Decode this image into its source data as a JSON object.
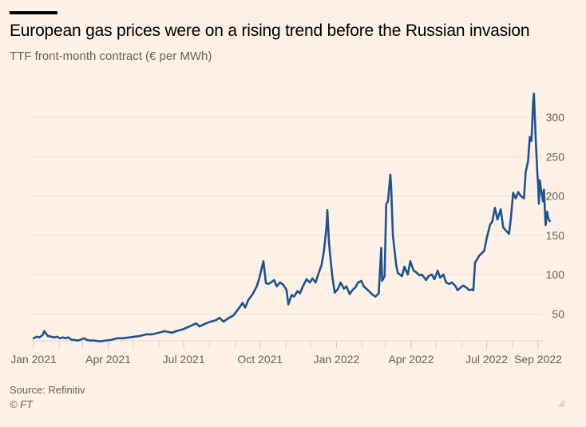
{
  "header": {
    "title": "European gas prices were on a rising trend before the Russian invasion",
    "subtitle": "TTF front-month contract (€ per MWh)"
  },
  "footer": {
    "source": "Source: Refinitiv",
    "copyright": "© FT"
  },
  "colors": {
    "background": "#fff1e5",
    "line": "#1a5494",
    "gridline": "#f2dfce",
    "text_muted": "#66605c"
  },
  "chart_data": {
    "type": "line",
    "title": "European gas prices were on a rising trend before the Russian invasion",
    "subtitle": "TTF front-month contract (€ per MWh)",
    "xlabel": "",
    "ylabel": "€ per MWh",
    "x_range": [
      "2021-01-01",
      "2022-09-05"
    ],
    "ylim": [
      16,
      335
    ],
    "y_ticks": [
      50,
      100,
      150,
      200,
      250,
      300
    ],
    "y_tick_labels": [
      "50",
      "100",
      "150",
      "200",
      "250",
      "300"
    ],
    "y_axis_side": "right",
    "x_ticks": [
      "2021-01-01",
      "2021-04-01",
      "2021-07-01",
      "2021-10-01",
      "2022-01-01",
      "2022-04-01",
      "2022-07-01",
      "2022-09-01"
    ],
    "x_tick_labels": [
      "Jan 2021",
      "Apr 2021",
      "Jul 2021",
      "Oct 2021",
      "Jan 2022",
      "Apr 2022",
      "Jul 2022",
      "Sep 2022"
    ],
    "x_minor_ticks_monthly": true,
    "grid": true,
    "legend": "none",
    "series": [
      {
        "name": "TTF front-month",
        "points": [
          [
            "2021-01-01",
            19
          ],
          [
            "2021-01-05",
            21
          ],
          [
            "2021-01-08",
            20
          ],
          [
            "2021-01-12",
            23
          ],
          [
            "2021-01-14",
            28
          ],
          [
            "2021-01-18",
            22
          ],
          [
            "2021-01-22",
            21
          ],
          [
            "2021-01-26",
            20
          ],
          [
            "2021-01-29",
            21
          ],
          [
            "2021-02-02",
            19
          ],
          [
            "2021-02-05",
            20
          ],
          [
            "2021-02-09",
            19
          ],
          [
            "2021-02-12",
            20
          ],
          [
            "2021-02-16",
            17
          ],
          [
            "2021-02-19",
            17
          ],
          [
            "2021-02-23",
            16
          ],
          [
            "2021-02-26",
            17
          ],
          [
            "2021-03-03",
            19
          ],
          [
            "2021-03-06",
            17
          ],
          [
            "2021-03-10",
            16
          ],
          [
            "2021-03-15",
            16
          ],
          [
            "2021-03-22",
            15
          ],
          [
            "2021-03-29",
            16
          ],
          [
            "2021-04-05",
            17
          ],
          [
            "2021-04-12",
            19
          ],
          [
            "2021-04-19",
            19
          ],
          [
            "2021-04-26",
            20
          ],
          [
            "2021-05-03",
            21
          ],
          [
            "2021-05-10",
            22
          ],
          [
            "2021-05-17",
            24
          ],
          [
            "2021-05-24",
            24
          ],
          [
            "2021-06-01",
            26
          ],
          [
            "2021-06-08",
            28
          ],
          [
            "2021-06-12",
            27
          ],
          [
            "2021-06-17",
            26
          ],
          [
            "2021-06-22",
            28
          ],
          [
            "2021-06-29",
            30
          ],
          [
            "2021-07-06",
            33
          ],
          [
            "2021-07-12",
            36
          ],
          [
            "2021-07-16",
            38
          ],
          [
            "2021-07-20",
            34
          ],
          [
            "2021-07-26",
            37
          ],
          [
            "2021-08-02",
            40
          ],
          [
            "2021-08-09",
            42
          ],
          [
            "2021-08-13",
            45
          ],
          [
            "2021-08-18",
            40
          ],
          [
            "2021-08-23",
            44
          ],
          [
            "2021-08-30",
            48
          ],
          [
            "2021-09-06",
            58
          ],
          [
            "2021-09-10",
            64
          ],
          [
            "2021-09-13",
            58
          ],
          [
            "2021-09-17",
            68
          ],
          [
            "2021-09-22",
            75
          ],
          [
            "2021-09-27",
            85
          ],
          [
            "2021-09-30",
            95
          ],
          [
            "2021-10-05",
            117
          ],
          [
            "2021-10-08",
            89
          ],
          [
            "2021-10-11",
            88
          ],
          [
            "2021-10-14",
            90
          ],
          [
            "2021-10-18",
            93
          ],
          [
            "2021-10-21",
            85
          ],
          [
            "2021-10-25",
            90
          ],
          [
            "2021-10-29",
            87
          ],
          [
            "2021-11-02",
            80
          ],
          [
            "2021-11-04",
            62
          ],
          [
            "2021-11-08",
            74
          ],
          [
            "2021-11-11",
            72
          ],
          [
            "2021-11-15",
            79
          ],
          [
            "2021-11-18",
            76
          ],
          [
            "2021-11-22",
            86
          ],
          [
            "2021-11-26",
            94
          ],
          [
            "2021-11-30",
            90
          ],
          [
            "2021-12-03",
            95
          ],
          [
            "2021-12-07",
            90
          ],
          [
            "2021-12-10",
            100
          ],
          [
            "2021-12-14",
            112
          ],
          [
            "2021-12-17",
            130
          ],
          [
            "2021-12-20",
            160
          ],
          [
            "2021-12-21",
            182
          ],
          [
            "2021-12-23",
            140
          ],
          [
            "2021-12-27",
            98
          ],
          [
            "2021-12-30",
            77
          ],
          [
            "2022-01-03",
            82
          ],
          [
            "2022-01-06",
            90
          ],
          [
            "2022-01-10",
            82
          ],
          [
            "2022-01-13",
            85
          ],
          [
            "2022-01-17",
            75
          ],
          [
            "2022-01-20",
            80
          ],
          [
            "2022-01-24",
            84
          ],
          [
            "2022-01-27",
            90
          ],
          [
            "2022-01-31",
            92
          ],
          [
            "2022-02-03",
            85
          ],
          [
            "2022-02-07",
            81
          ],
          [
            "2022-02-10",
            78
          ],
          [
            "2022-02-14",
            74
          ],
          [
            "2022-02-17",
            72
          ],
          [
            "2022-02-21",
            76
          ],
          [
            "2022-02-24",
            134
          ],
          [
            "2022-02-25",
            92
          ],
          [
            "2022-02-28",
            98
          ],
          [
            "2022-03-02",
            190
          ],
          [
            "2022-03-04",
            193
          ],
          [
            "2022-03-07",
            227
          ],
          [
            "2022-03-08",
            210
          ],
          [
            "2022-03-10",
            150
          ],
          [
            "2022-03-14",
            112
          ],
          [
            "2022-03-16",
            102
          ],
          [
            "2022-03-21",
            98
          ],
          [
            "2022-03-24",
            110
          ],
          [
            "2022-03-28",
            100
          ],
          [
            "2022-03-31",
            117
          ],
          [
            "2022-04-04",
            105
          ],
          [
            "2022-04-07",
            103
          ],
          [
            "2022-04-11",
            99
          ],
          [
            "2022-04-14",
            100
          ],
          [
            "2022-04-19",
            93
          ],
          [
            "2022-04-22",
            98
          ],
          [
            "2022-04-26",
            100
          ],
          [
            "2022-04-29",
            94
          ],
          [
            "2022-05-03",
            105
          ],
          [
            "2022-05-06",
            96
          ],
          [
            "2022-05-10",
            100
          ],
          [
            "2022-05-13",
            90
          ],
          [
            "2022-05-17",
            88
          ],
          [
            "2022-05-20",
            90
          ],
          [
            "2022-05-24",
            86
          ],
          [
            "2022-05-27",
            80
          ],
          [
            "2022-05-31",
            84
          ],
          [
            "2022-06-03",
            86
          ],
          [
            "2022-06-07",
            83
          ],
          [
            "2022-06-10",
            80
          ],
          [
            "2022-06-13",
            81
          ],
          [
            "2022-06-15",
            80
          ],
          [
            "2022-06-17",
            115
          ],
          [
            "2022-06-22",
            124
          ],
          [
            "2022-06-28",
            130
          ],
          [
            "2022-07-01",
            146
          ],
          [
            "2022-07-05",
            163
          ],
          [
            "2022-07-08",
            168
          ],
          [
            "2022-07-11",
            185
          ],
          [
            "2022-07-14",
            170
          ],
          [
            "2022-07-18",
            183
          ],
          [
            "2022-07-21",
            160
          ],
          [
            "2022-07-25",
            155
          ],
          [
            "2022-07-28",
            152
          ],
          [
            "2022-07-30",
            170
          ],
          [
            "2022-08-02",
            204
          ],
          [
            "2022-08-05",
            197
          ],
          [
            "2022-08-08",
            205
          ],
          [
            "2022-08-11",
            200
          ],
          [
            "2022-08-15",
            197
          ],
          [
            "2022-08-17",
            230
          ],
          [
            "2022-08-20",
            245
          ],
          [
            "2022-08-22",
            275
          ],
          [
            "2022-08-24",
            270
          ],
          [
            "2022-08-26",
            320
          ],
          [
            "2022-08-27",
            330
          ],
          [
            "2022-08-29",
            275
          ],
          [
            "2022-08-31",
            230
          ],
          [
            "2022-09-01",
            215
          ],
          [
            "2022-09-02",
            190
          ],
          [
            "2022-09-03",
            220
          ],
          [
            "2022-09-05",
            205
          ],
          [
            "2022-09-07",
            193
          ],
          [
            "2022-09-08",
            208
          ],
          [
            "2022-09-10",
            163
          ],
          [
            "2022-09-12",
            180
          ],
          [
            "2022-09-13",
            172
          ],
          [
            "2022-09-15",
            168
          ]
        ]
      }
    ]
  }
}
